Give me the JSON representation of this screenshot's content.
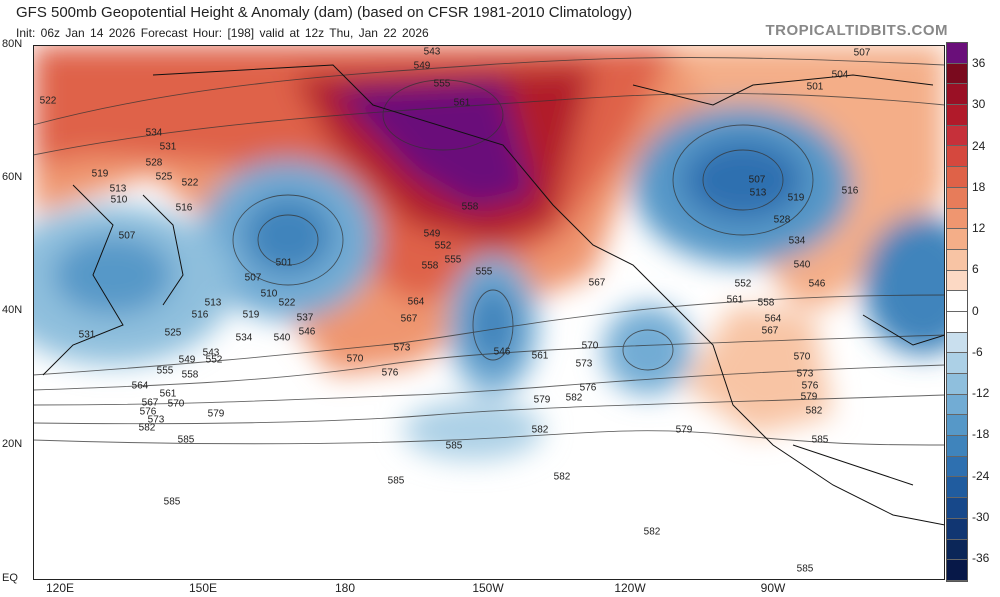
{
  "header": {
    "title": "GFS 500mb Geopotential Height & Anomaly (dam) (based on CFSR 1981-2010 Climatology)",
    "subtitle": "Init: 06z Jan 14 2026   Forecast Hour: [198]   valid at 12z Thu, Jan 22 2026",
    "brand": "TROPICALTIDBITS.COM"
  },
  "axes": {
    "lat_labels": [
      "80N",
      "60N",
      "40N",
      "20N",
      "EQ"
    ],
    "lon_labels": [
      "120E",
      "150E",
      "180",
      "150W",
      "120W",
      "90W"
    ]
  },
  "colorbar": {
    "labels": [
      "36",
      "30",
      "24",
      "18",
      "12",
      "6",
      "0",
      "-6",
      "-12",
      "-18",
      "-24",
      "-30",
      "-36"
    ],
    "colors": [
      "#6a0f7a",
      "#7a0a1e",
      "#9a1025",
      "#b11a2a",
      "#c6303a",
      "#d5483e",
      "#df6248",
      "#e77c5a",
      "#ef9670",
      "#f4ae88",
      "#f8c4a4",
      "#fcd9c4",
      "#ffffff",
      "#ffffff",
      "#c9dfee",
      "#acd0e6",
      "#8fbfdd",
      "#72acd4",
      "#5698c8",
      "#3f84bc",
      "#2e70b0",
      "#205c9f",
      "#17488a",
      "#113672",
      "#0b2658",
      "#071848"
    ]
  },
  "contour_labels": [
    "543",
    "549",
    "555",
    "561",
    "507",
    "504",
    "501",
    "522",
    "534",
    "531",
    "528",
    "525",
    "519",
    "513",
    "510",
    "516",
    "522",
    "507",
    "501",
    "507",
    "510",
    "513",
    "516",
    "519",
    "522",
    "525",
    "534",
    "537",
    "540",
    "546",
    "531",
    "549",
    "552",
    "543",
    "555",
    "558",
    "564",
    "561",
    "567",
    "576",
    "570",
    "573",
    "579",
    "582",
    "585",
    "558",
    "549",
    "552",
    "555",
    "558",
    "564",
    "567",
    "570",
    "573",
    "576",
    "555",
    "546",
    "561",
    "570",
    "573",
    "576",
    "579",
    "582",
    "585",
    "567",
    "582",
    "579",
    "582",
    "585",
    "513",
    "507",
    "519",
    "516",
    "528",
    "534",
    "540",
    "546",
    "552",
    "561",
    "558",
    "564",
    "567",
    "570",
    "573",
    "576",
    "579",
    "582",
    "585",
    "585",
    "582",
    "585"
  ]
}
